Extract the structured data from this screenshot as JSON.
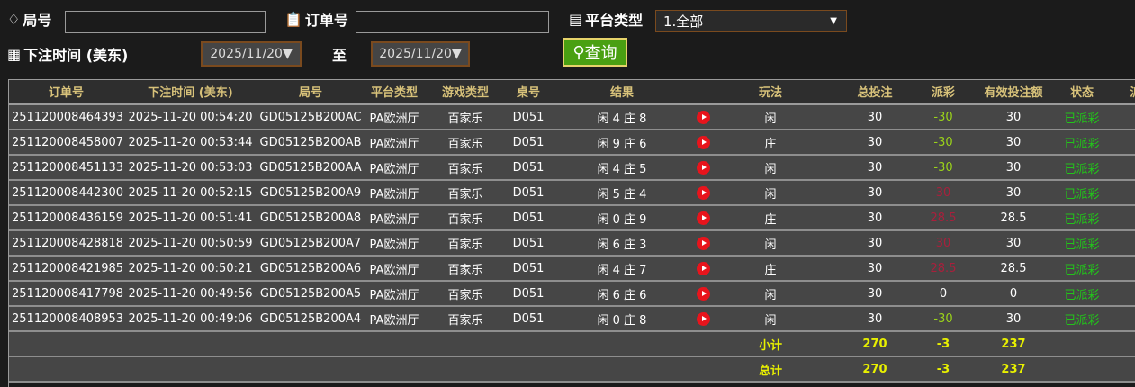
{
  "filters": {
    "round_label": "局号",
    "round_value": "",
    "order_label": "订单号",
    "order_value": "",
    "platform_label": "平台类型",
    "platform_value": "1.全部",
    "time_label": "下注时间 (美东)",
    "date_from": "2025/11/20▼",
    "to_label": "至",
    "date_to": "2025/11/20▼",
    "query_label": "查询"
  },
  "table": {
    "headers": [
      "订单号",
      "下注时间 (美东)",
      "局号",
      "平台类型",
      "游戏类型",
      "桌号",
      "结果",
      "",
      "玩法",
      "总投注",
      "派彩",
      "有效投注额",
      "状态",
      "派"
    ],
    "rows": [
      [
        "251120008464393",
        "2025-11-20 00:54:20",
        "GD05125B200AC",
        "PA欧洲厅",
        "百家乐",
        "D051",
        "闲 4 庄 8",
        "闲",
        "30",
        "-30",
        "30",
        "已派彩"
      ],
      [
        "251120008458007",
        "2025-11-20 00:53:44",
        "GD05125B200AB",
        "PA欧洲厅",
        "百家乐",
        "D051",
        "闲 9 庄 6",
        "庄",
        "30",
        "-30",
        "30",
        "已派彩"
      ],
      [
        "251120008451133",
        "2025-11-20 00:53:03",
        "GD05125B200AA",
        "PA欧洲厅",
        "百家乐",
        "D051",
        "闲 4 庄 5",
        "闲",
        "30",
        "-30",
        "30",
        "已派彩"
      ],
      [
        "251120008442300",
        "2025-11-20 00:52:15",
        "GD05125B200A9",
        "PA欧洲厅",
        "百家乐",
        "D051",
        "闲 5 庄 4",
        "闲",
        "30",
        "30",
        "30",
        "已派彩"
      ],
      [
        "251120008436159",
        "2025-11-20 00:51:41",
        "GD05125B200A8",
        "PA欧洲厅",
        "百家乐",
        "D051",
        "闲 0 庄 9",
        "庄",
        "30",
        "28.5",
        "28.5",
        "已派彩"
      ],
      [
        "251120008428818",
        "2025-11-20 00:50:59",
        "GD05125B200A7",
        "PA欧洲厅",
        "百家乐",
        "D051",
        "闲 6 庄 3",
        "闲",
        "30",
        "30",
        "30",
        "已派彩"
      ],
      [
        "251120008421985",
        "2025-11-20 00:50:21",
        "GD05125B200A6",
        "PA欧洲厅",
        "百家乐",
        "D051",
        "闲 4 庄 7",
        "庄",
        "30",
        "28.5",
        "28.5",
        "已派彩"
      ],
      [
        "251120008417798",
        "2025-11-20 00:49:56",
        "GD05125B200A5",
        "PA欧洲厅",
        "百家乐",
        "D051",
        "闲 6 庄 6",
        "闲",
        "30",
        "0",
        "0",
        "已派彩"
      ],
      [
        "251120008408953",
        "2025-11-20 00:49:06",
        "GD05125B200A4",
        "PA欧洲厅",
        "百家乐",
        "D051",
        "闲 0 庄 8",
        "闲",
        "30",
        "-30",
        "30",
        "已派彩"
      ]
    ],
    "subtotal": {
      "label": "小计",
      "bet": "270",
      "payout": "-3",
      "valid": "237"
    },
    "total": {
      "label": "总计",
      "bet": "270",
      "payout": "-3",
      "valid": "237"
    }
  },
  "colors": {
    "win": "#a8203c",
    "loss": "#9ad21a",
    "status": "#22c41a",
    "totals": "#e8f000",
    "header_text": "#d8c27a"
  }
}
